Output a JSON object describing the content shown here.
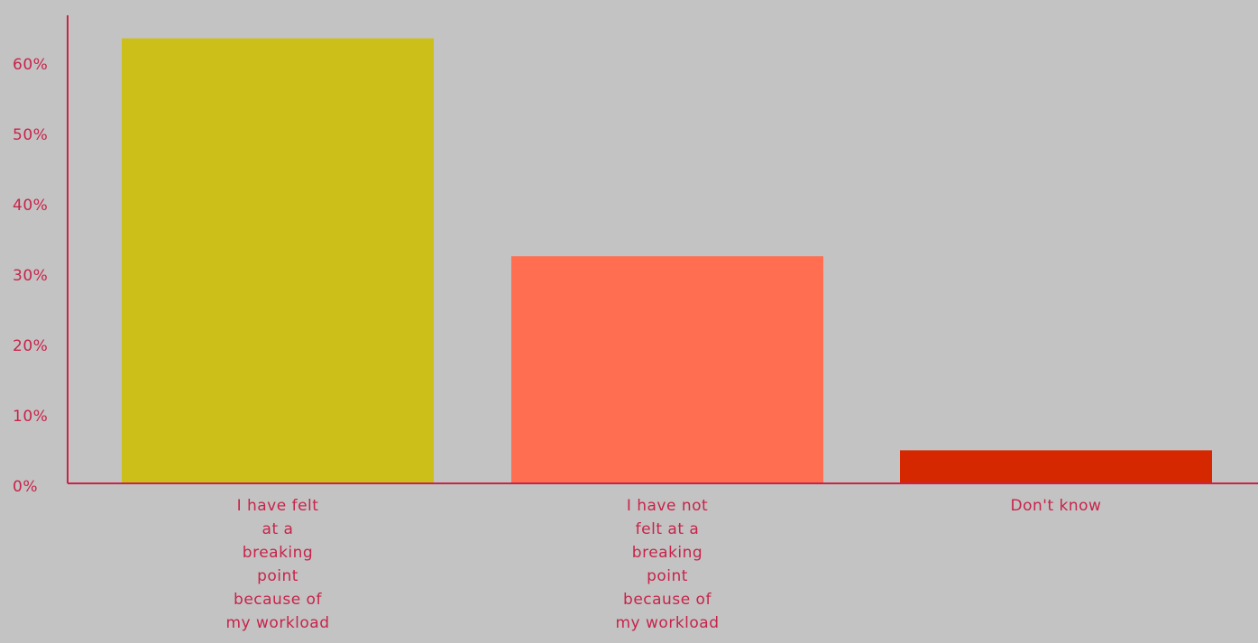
{
  "chart_data": {
    "type": "bar",
    "title": "",
    "xlabel": "",
    "ylabel": "",
    "ylim": [
      0,
      66
    ],
    "yticks": [
      0,
      10,
      20,
      30,
      40,
      50,
      60
    ],
    "ytick_labels": [
      "0%",
      "10%",
      "20%",
      "30%",
      "40%",
      "50%",
      "60%"
    ],
    "categories": [
      [
        "I have felt",
        "at a",
        "breaking",
        "point",
        "because of",
        "my workload"
      ],
      [
        "I have not",
        "felt at a",
        "breaking",
        "point",
        "because of",
        "my workload"
      ],
      [
        "Don't know"
      ]
    ],
    "values": [
      63.3,
      32.3,
      4.7
    ],
    "grid": false,
    "legend": "none"
  },
  "colors": {
    "background": "#c3c3c3",
    "axis": "#c8234a",
    "text": "#c8234a",
    "bars": [
      "#cdbf19",
      "#ff6e50",
      "#d62800"
    ]
  }
}
